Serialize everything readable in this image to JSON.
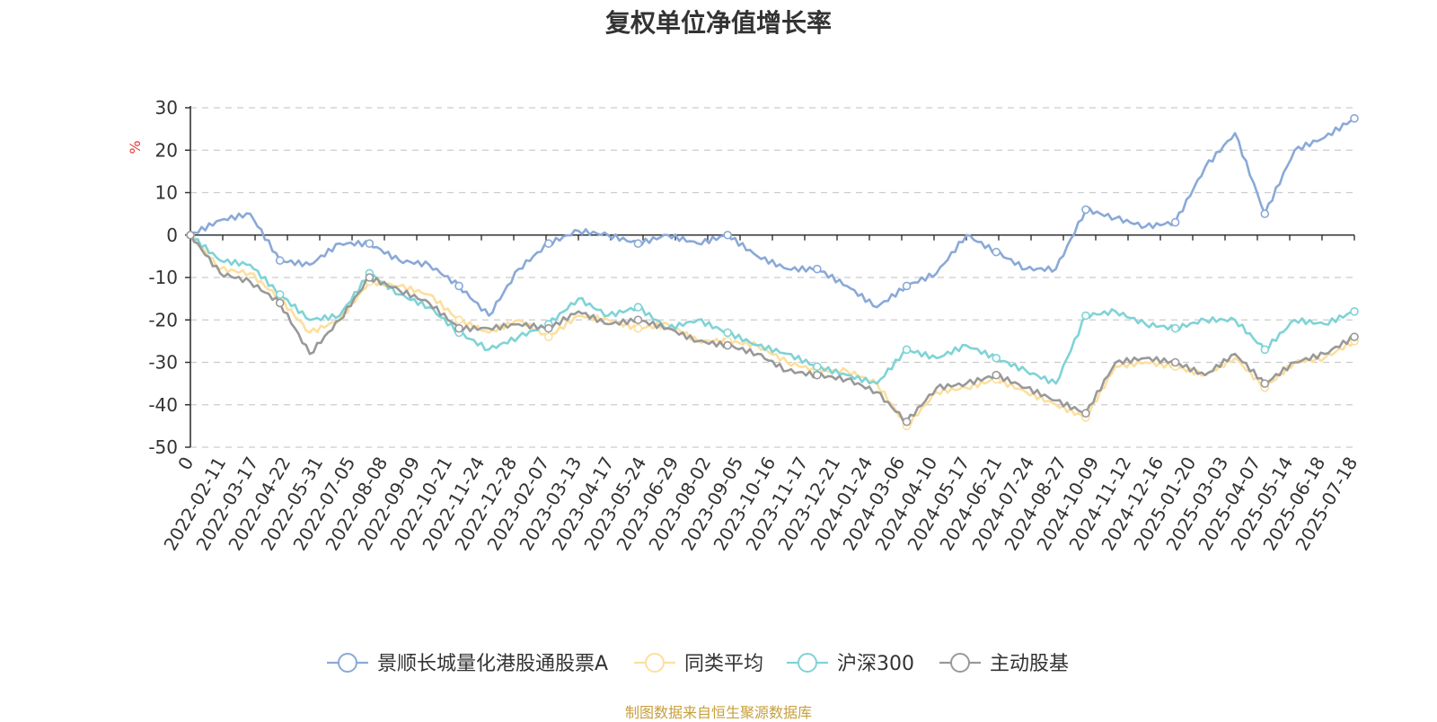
{
  "chart_data": {
    "type": "line",
    "title": "复权单位净值增长率",
    "ylabel": "%",
    "ylim": [
      -50,
      30
    ],
    "yticks": [
      "30",
      "20",
      "10",
      "0",
      "-10",
      "-20",
      "-30",
      "-40",
      "-50"
    ],
    "x_tick_labels": [
      "0",
      "2022-02-11",
      "2022-03-17",
      "2022-04-22",
      "2022-05-31",
      "2022-07-05",
      "2022-08-08",
      "2022-09-09",
      "2022-10-21",
      "2022-11-24",
      "2022-12-28",
      "2023-02-07",
      "2023-03-13",
      "2023-04-17",
      "2023-05-24",
      "2023-06-29",
      "2023-08-02",
      "2023-09-05",
      "2023-10-16",
      "2023-11-17",
      "2023-12-21",
      "2024-01-24",
      "2024-03-06",
      "2024-04-10",
      "2024-05-17",
      "2024-06-21",
      "2024-07-24",
      "2024-08-27",
      "2024-10-09",
      "2024-11-12",
      "2024-12-16",
      "2025-01-20",
      "2025-03-03",
      "2025-04-07",
      "2025-05-14",
      "2025-06-18",
      "2025-07-18"
    ],
    "grid": "horizontal dashed",
    "legend_position": "bottom",
    "series": [
      {
        "name": "景顺长城量化港股通股票A",
        "color": "#8aa9d8",
        "values": [
          0,
          3.5,
          5,
          -6,
          -7,
          -2,
          -2,
          -6,
          -7,
          -12,
          -19,
          -8,
          -2,
          1,
          0,
          -2,
          0,
          -2,
          0,
          -5,
          -8,
          -8,
          -12,
          -17,
          -12,
          -9,
          0,
          -4,
          -8,
          -8,
          6,
          4,
          2,
          3,
          16,
          24,
          5,
          20,
          23,
          27.5
        ]
      },
      {
        "name": "同类平均",
        "color": "#fddf9d",
        "values": [
          0,
          -8,
          -9,
          -15,
          -23,
          -20,
          -11,
          -12,
          -14,
          -20,
          -23,
          -20,
          -24,
          -19,
          -20,
          -22,
          -21,
          -25,
          -25,
          -26,
          -30,
          -32,
          -32,
          -35,
          -45,
          -37,
          -36,
          -34,
          -37,
          -40,
          -43,
          -31,
          -30,
          -31,
          -33,
          -29,
          -36,
          -30,
          -29,
          -25
        ]
      },
      {
        "name": "沪深300",
        "color": "#7fd3d6",
        "values": [
          0,
          -6,
          -7,
          -14,
          -20,
          -19,
          -9,
          -14,
          -17,
          -23,
          -27,
          -24,
          -21,
          -15,
          -19,
          -17,
          -22,
          -20,
          -23,
          -26,
          -28,
          -31,
          -33,
          -35,
          -27,
          -29,
          -26,
          -29,
          -32,
          -35,
          -19,
          -18,
          -21,
          -22,
          -20,
          -20,
          -27,
          -20,
          -21,
          -18
        ]
      },
      {
        "name": "主动股基",
        "color": "#999999",
        "values": [
          0,
          -9,
          -11,
          -16,
          -28,
          -20,
          -10,
          -13,
          -16,
          -22,
          -22,
          -21,
          -22,
          -18,
          -21,
          -20,
          -22,
          -25,
          -26,
          -28,
          -32,
          -33,
          -34,
          -37,
          -44,
          -36,
          -35,
          -33,
          -36,
          -39,
          -42,
          -30,
          -29,
          -30,
          -33,
          -28,
          -35,
          -30,
          -28,
          -24
        ]
      }
    ]
  },
  "legend": {
    "items": [
      "景顺长城量化港股通股票A",
      "同类平均",
      "沪深300",
      "主动股基"
    ]
  },
  "source_note": "制图数据来自恒生聚源数据库"
}
